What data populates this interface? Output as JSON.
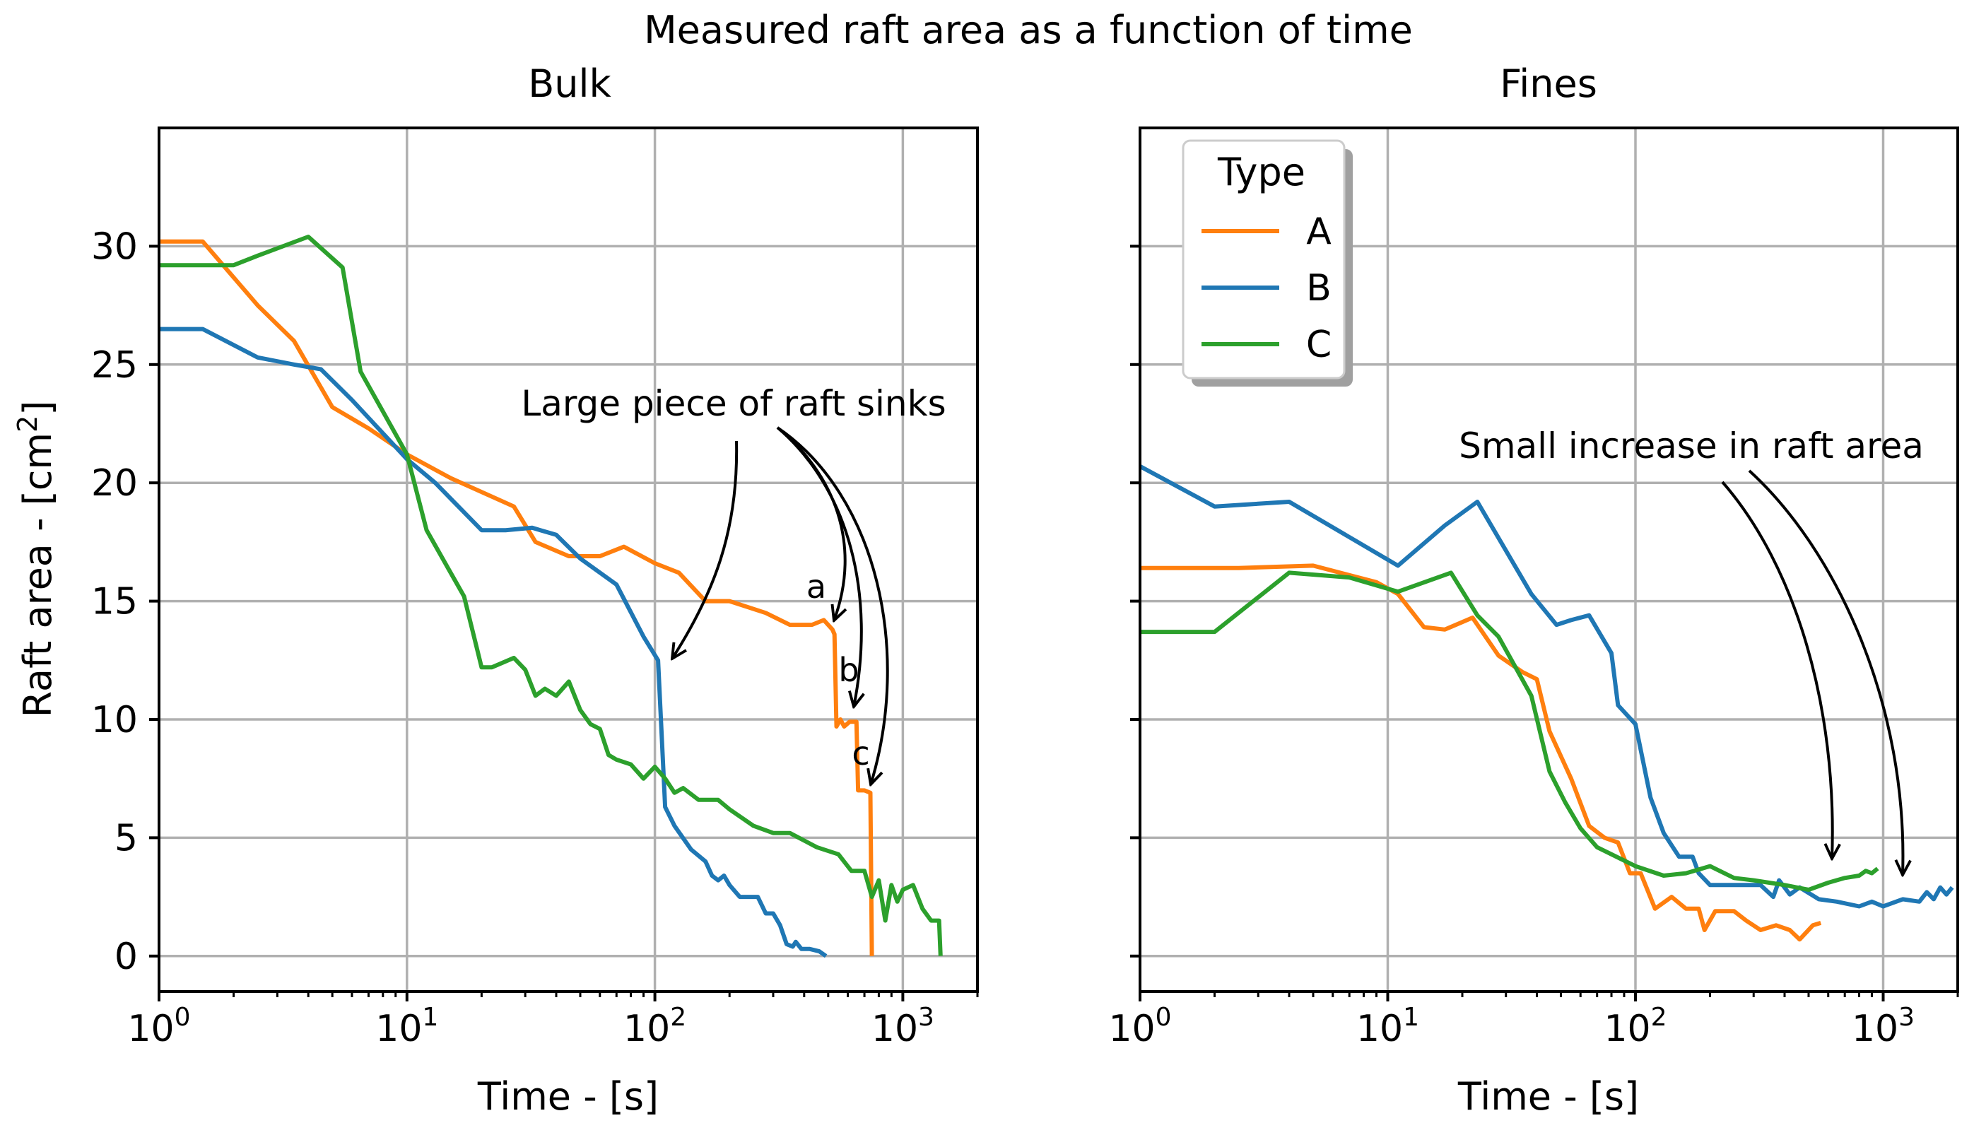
{
  "suptitle": "Measured raft area as a function of time",
  "chart_data": [
    {
      "type": "line",
      "title": "Bulk",
      "xlabel": "Time - [s]",
      "ylabel_main": "Raft area - [cm",
      "ylabel_sup": "2",
      "ylabel_end": "]",
      "xscale": "log",
      "xlim": [
        1,
        2000
      ],
      "ylim": [
        -1.5,
        35
      ],
      "xticks": [
        {
          "v": 1,
          "base": "10",
          "exp": "0"
        },
        {
          "v": 10,
          "base": "10",
          "exp": "1"
        },
        {
          "v": 100,
          "base": "10",
          "exp": "2"
        },
        {
          "v": 1000,
          "base": "10",
          "exp": "3"
        }
      ],
      "yticks": [
        {
          "v": 0,
          "label": "0"
        },
        {
          "v": 5,
          "label": "5"
        },
        {
          "v": 10,
          "label": "10"
        },
        {
          "v": 15,
          "label": "15"
        },
        {
          "v": 20,
          "label": "20"
        },
        {
          "v": 25,
          "label": "25"
        },
        {
          "v": 30,
          "label": "30"
        }
      ],
      "series": [
        {
          "name": "A",
          "color": "#ff7f0e",
          "points": [
            [
              1,
              30.2
            ],
            [
              1.5,
              30.2
            ],
            [
              2.5,
              27.5
            ],
            [
              3.5,
              26
            ],
            [
              5,
              23.2
            ],
            [
              7,
              22.3
            ],
            [
              10,
              21.2
            ],
            [
              15,
              20.2
            ],
            [
              27,
              19
            ],
            [
              33,
              17.5
            ],
            [
              45,
              16.9
            ],
            [
              60,
              16.9
            ],
            [
              75,
              17.3
            ],
            [
              100,
              16.6
            ],
            [
              125,
              16.2
            ],
            [
              160,
              15
            ],
            [
              200,
              15
            ],
            [
              280,
              14.5
            ],
            [
              350,
              14
            ],
            [
              430,
              14
            ],
            [
              480,
              14.2
            ],
            [
              520,
              13.8
            ],
            [
              530,
              13.6
            ],
            [
              540,
              9.7
            ],
            [
              560,
              10
            ],
            [
              580,
              9.7
            ],
            [
              610,
              9.9
            ],
            [
              650,
              9.9
            ],
            [
              660,
              7
            ],
            [
              700,
              7
            ],
            [
              740,
              6.9
            ],
            [
              750,
              0
            ]
          ]
        },
        {
          "name": "B",
          "color": "#1f77b4",
          "points": [
            [
              1,
              26.5
            ],
            [
              1.5,
              26.5
            ],
            [
              2.5,
              25.3
            ],
            [
              3.5,
              25
            ],
            [
              4.5,
              24.8
            ],
            [
              6,
              23.5
            ],
            [
              10,
              21
            ],
            [
              13,
              20
            ],
            [
              20,
              18
            ],
            [
              25,
              18
            ],
            [
              32,
              18.1
            ],
            [
              40,
              17.8
            ],
            [
              50,
              16.8
            ],
            [
              70,
              15.7
            ],
            [
              90,
              13.5
            ],
            [
              103,
              12.5
            ],
            [
              110,
              6.3
            ],
            [
              120,
              5.5
            ],
            [
              140,
              4.5
            ],
            [
              160,
              4
            ],
            [
              170,
              3.4
            ],
            [
              180,
              3.2
            ],
            [
              190,
              3.4
            ],
            [
              200,
              3
            ],
            [
              220,
              2.5
            ],
            [
              260,
              2.5
            ],
            [
              280,
              1.8
            ],
            [
              300,
              1.8
            ],
            [
              320,
              1.3
            ],
            [
              340,
              0.5
            ],
            [
              360,
              0.4
            ],
            [
              370,
              0.6
            ],
            [
              390,
              0.3
            ],
            [
              420,
              0.3
            ],
            [
              460,
              0.2
            ],
            [
              490,
              0
            ]
          ]
        },
        {
          "name": "C",
          "color": "#2ca02c",
          "points": [
            [
              1,
              29.2
            ],
            [
              2,
              29.2
            ],
            [
              2.5,
              29.6
            ],
            [
              4,
              30.4
            ],
            [
              5.5,
              29.1
            ],
            [
              6.5,
              24.7
            ],
            [
              10,
              21.2
            ],
            [
              12,
              18
            ],
            [
              15,
              16.2
            ],
            [
              17,
              15.2
            ],
            [
              20,
              12.2
            ],
            [
              22,
              12.2
            ],
            [
              27,
              12.6
            ],
            [
              30,
              12.1
            ],
            [
              33,
              11
            ],
            [
              36,
              11.3
            ],
            [
              40,
              11
            ],
            [
              45,
              11.6
            ],
            [
              50,
              10.4
            ],
            [
              55,
              9.8
            ],
            [
              60,
              9.6
            ],
            [
              65,
              8.5
            ],
            [
              70,
              8.3
            ],
            [
              80,
              8.1
            ],
            [
              90,
              7.5
            ],
            [
              100,
              8
            ],
            [
              110,
              7.5
            ],
            [
              120,
              6.9
            ],
            [
              130,
              7.1
            ],
            [
              150,
              6.6
            ],
            [
              180,
              6.6
            ],
            [
              200,
              6.2
            ],
            [
              250,
              5.5
            ],
            [
              300,
              5.2
            ],
            [
              350,
              5.2
            ],
            [
              450,
              4.6
            ],
            [
              550,
              4.3
            ],
            [
              620,
              3.6
            ],
            [
              700,
              3.6
            ],
            [
              750,
              2.5
            ],
            [
              800,
              3.2
            ],
            [
              850,
              1.5
            ],
            [
              900,
              3
            ],
            [
              950,
              2.3
            ],
            [
              1000,
              2.8
            ],
            [
              1100,
              3
            ],
            [
              1200,
              2
            ],
            [
              1300,
              1.5
            ],
            [
              1400,
              1.5
            ],
            [
              1420,
              0
            ]
          ]
        }
      ],
      "annotations": [
        {
          "text": "Large piece of raft sinks"
        },
        {
          "text": "a"
        },
        {
          "text": "b"
        },
        {
          "text": "c"
        }
      ]
    },
    {
      "type": "line",
      "title": "Fines",
      "xlabel": "Time - [s]",
      "xscale": "log",
      "xlim": [
        1,
        2000
      ],
      "ylim": [
        -1.5,
        35
      ],
      "xticks": [
        {
          "v": 1,
          "base": "10",
          "exp": "0"
        },
        {
          "v": 10,
          "base": "10",
          "exp": "1"
        },
        {
          "v": 100,
          "base": "10",
          "exp": "2"
        },
        {
          "v": 1000,
          "base": "10",
          "exp": "3"
        }
      ],
      "yticks": [
        {
          "v": 0
        },
        {
          "v": 5
        },
        {
          "v": 10
        },
        {
          "v": 15
        },
        {
          "v": 20
        },
        {
          "v": 25
        },
        {
          "v": 30
        }
      ],
      "series": [
        {
          "name": "A",
          "color": "#ff7f0e",
          "points": [
            [
              1,
              16.4
            ],
            [
              2.5,
              16.4
            ],
            [
              5,
              16.5
            ],
            [
              9,
              15.8
            ],
            [
              11,
              15.3
            ],
            [
              14,
              13.9
            ],
            [
              17,
              13.8
            ],
            [
              22,
              14.3
            ],
            [
              28,
              12.7
            ],
            [
              35,
              12
            ],
            [
              40,
              11.7
            ],
            [
              45,
              9.5
            ],
            [
              55,
              7.5
            ],
            [
              65,
              5.5
            ],
            [
              75,
              5
            ],
            [
              85,
              4.8
            ],
            [
              95,
              3.5
            ],
            [
              105,
              3.5
            ],
            [
              120,
              2
            ],
            [
              140,
              2.5
            ],
            [
              160,
              2
            ],
            [
              180,
              2
            ],
            [
              190,
              1.1
            ],
            [
              210,
              1.9
            ],
            [
              250,
              1.9
            ],
            [
              280,
              1.5
            ],
            [
              320,
              1.1
            ],
            [
              370,
              1.3
            ],
            [
              420,
              1.1
            ],
            [
              460,
              0.7
            ],
            [
              520,
              1.3
            ],
            [
              560,
              1.4
            ]
          ]
        },
        {
          "name": "B",
          "color": "#1f77b4",
          "points": [
            [
              1,
              20.7
            ],
            [
              2,
              19
            ],
            [
              4,
              19.2
            ],
            [
              11,
              16.5
            ],
            [
              17,
              18.2
            ],
            [
              23,
              19.2
            ],
            [
              38,
              15.3
            ],
            [
              48,
              14
            ],
            [
              55,
              14.2
            ],
            [
              65,
              14.4
            ],
            [
              80,
              12.8
            ],
            [
              85,
              10.6
            ],
            [
              100,
              9.8
            ],
            [
              115,
              6.7
            ],
            [
              130,
              5.2
            ],
            [
              150,
              4.2
            ],
            [
              170,
              4.2
            ],
            [
              180,
              3.5
            ],
            [
              200,
              3
            ],
            [
              260,
              3
            ],
            [
              320,
              3
            ],
            [
              360,
              2.5
            ],
            [
              380,
              3.2
            ],
            [
              420,
              2.6
            ],
            [
              460,
              2.9
            ],
            [
              550,
              2.4
            ],
            [
              650,
              2.3
            ],
            [
              800,
              2.1
            ],
            [
              900,
              2.3
            ],
            [
              1000,
              2.1
            ],
            [
              1200,
              2.4
            ],
            [
              1400,
              2.3
            ],
            [
              1500,
              2.7
            ],
            [
              1600,
              2.4
            ],
            [
              1700,
              2.9
            ],
            [
              1800,
              2.6
            ],
            [
              1900,
              2.9
            ]
          ]
        },
        {
          "name": "C",
          "color": "#2ca02c",
          "points": [
            [
              1,
              13.7
            ],
            [
              2,
              13.7
            ],
            [
              4,
              16.2
            ],
            [
              7,
              16
            ],
            [
              11,
              15.4
            ],
            [
              18,
              16.2
            ],
            [
              23,
              14.4
            ],
            [
              28,
              13.5
            ],
            [
              38,
              11
            ],
            [
              45,
              7.8
            ],
            [
              52,
              6.5
            ],
            [
              60,
              5.4
            ],
            [
              70,
              4.6
            ],
            [
              100,
              3.8
            ],
            [
              130,
              3.4
            ],
            [
              160,
              3.5
            ],
            [
              200,
              3.8
            ],
            [
              250,
              3.3
            ],
            [
              300,
              3.2
            ],
            [
              400,
              3
            ],
            [
              500,
              2.8
            ],
            [
              600,
              3.1
            ],
            [
              700,
              3.3
            ],
            [
              800,
              3.4
            ],
            [
              850,
              3.6
            ],
            [
              900,
              3.5
            ],
            [
              950,
              3.7
            ]
          ]
        }
      ],
      "annotations": [
        {
          "text": "Small increase in raft area"
        }
      ]
    }
  ],
  "legend": {
    "title": "Type",
    "placement": "top-left",
    "entries": [
      {
        "label": "A",
        "color": "#ff7f0e"
      },
      {
        "label": "B",
        "color": "#1f77b4"
      },
      {
        "label": "C",
        "color": "#2ca02c"
      }
    ]
  }
}
